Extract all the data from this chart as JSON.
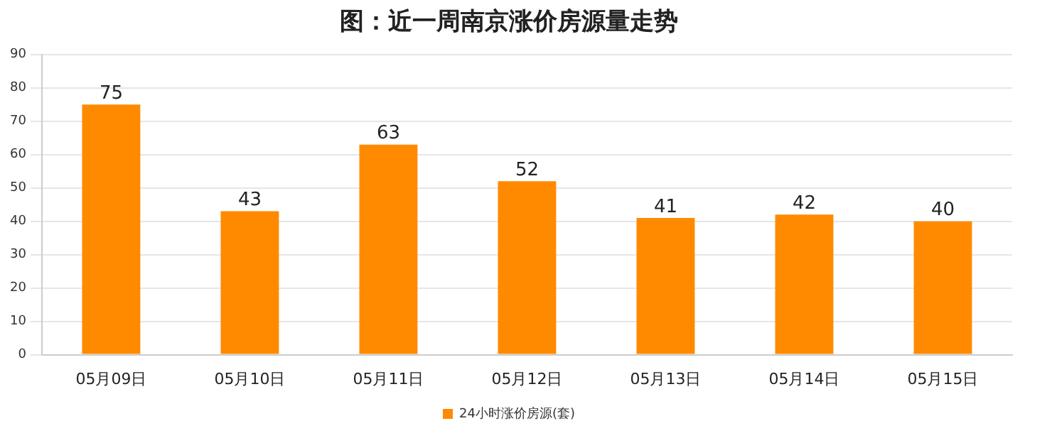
{
  "chart_data": {
    "type": "bar",
    "title": "图：近一周南京涨价房源量走势",
    "categories": [
      "05月09日",
      "05月10日",
      "05月11日",
      "05月12日",
      "05月13日",
      "05月14日",
      "05月15日"
    ],
    "series": [
      {
        "name": "24小时涨价房源(套)",
        "color": "#ff8a00",
        "values": [
          75,
          43,
          63,
          52,
          41,
          42,
          40
        ]
      }
    ],
    "ylim": [
      0,
      90
    ],
    "yticks": [
      0,
      10,
      20,
      30,
      40,
      50,
      60,
      70,
      80,
      90
    ],
    "grid": "y",
    "legend": "bottom",
    "data_labels": true
  }
}
